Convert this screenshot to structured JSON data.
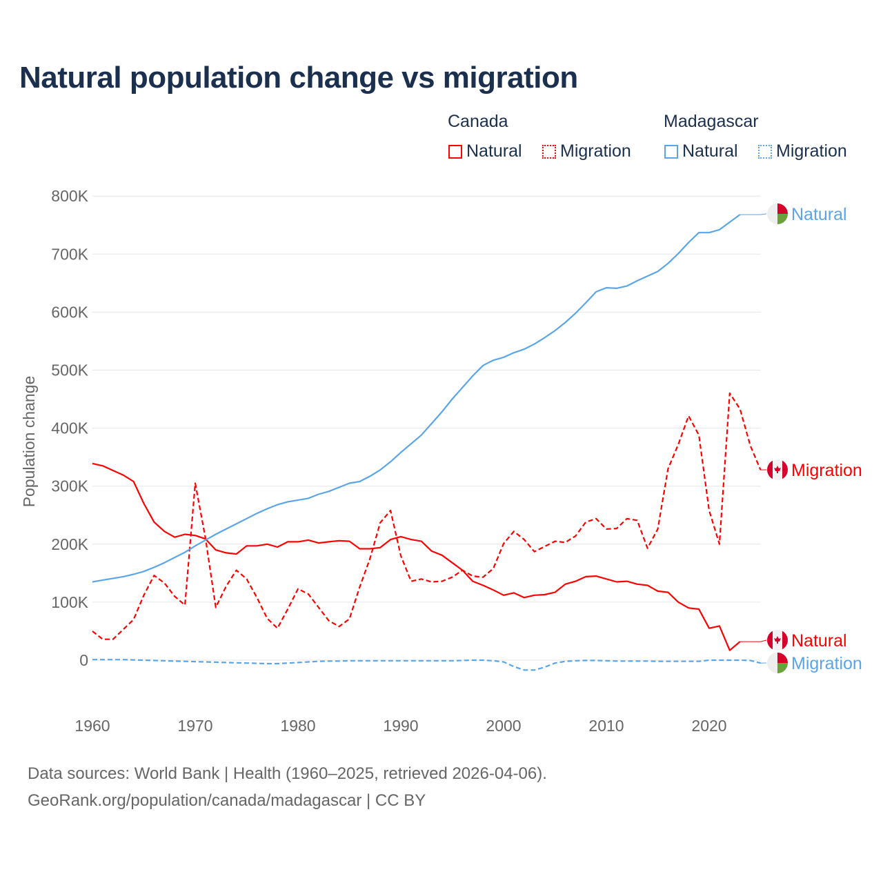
{
  "title": "Natural population change vs migration",
  "legend": {
    "groups": [
      {
        "country": "Canada",
        "items": [
          {
            "label": "Natural",
            "style": "solid",
            "color": "#ff0000"
          },
          {
            "label": "Migration",
            "style": "dotted",
            "color": "#ff0000"
          }
        ]
      },
      {
        "country": "Madagascar",
        "items": [
          {
            "label": "Natural",
            "style": "solid",
            "color": "#5aa5e8"
          },
          {
            "label": "Migration",
            "style": "dotted",
            "color": "#5aa5e8"
          }
        ]
      }
    ]
  },
  "footer": {
    "line1": "Data sources: World Bank | Health (1960–2025, retrieved 2026-04-06).",
    "line2": "GeoRank.org/population/canada/madagascar | CC BY"
  },
  "chart_data": {
    "type": "line",
    "title": "Natural population change vs migration",
    "xlabel": "",
    "ylabel": "Population change",
    "xlim": [
      1960,
      2025
    ],
    "ylim": [
      -80000,
      800000
    ],
    "x_ticks": [
      1960,
      1970,
      1980,
      1990,
      2000,
      2010,
      2020
    ],
    "x_tick_labels": [
      "1960",
      "1970",
      "1980",
      "1990",
      "2000",
      "2010",
      "2020"
    ],
    "y_ticks": [
      0,
      100000,
      200000,
      300000,
      400000,
      500000,
      600000,
      700000,
      800000
    ],
    "y_tick_labels": [
      "0",
      "100K",
      "200K",
      "300K",
      "400K",
      "500K",
      "600K",
      "700K",
      "800K"
    ],
    "grid": true,
    "legend_position": "top-right",
    "series": [
      {
        "name": "Canada Natural",
        "end_label": "Natural",
        "color": "#ff0000",
        "dash": "solid",
        "flag": "canada",
        "start_year": 1960,
        "values": [
          339000,
          335000,
          327000,
          319000,
          308000,
          270000,
          238000,
          222000,
          212000,
          217000,
          215000,
          209000,
          190000,
          185000,
          183000,
          197000,
          197000,
          200000,
          195000,
          204000,
          204000,
          207000,
          202000,
          204000,
          206000,
          205000,
          192000,
          192000,
          194000,
          208000,
          213000,
          208000,
          205000,
          188000,
          181000,
          168000,
          155000,
          136000,
          129000,
          121000,
          112000,
          116000,
          108000,
          112000,
          113000,
          117000,
          131000,
          136000,
          144000,
          145000,
          140000,
          135000,
          136000,
          131000,
          129000,
          119000,
          117000,
          100000,
          90000,
          88000,
          55000,
          59000,
          17000,
          32000
        ]
      },
      {
        "name": "Canada Migration",
        "end_label": "Migration",
        "color": "#ff0000",
        "dash": "dashed",
        "flag": "canada",
        "start_year": 1960,
        "values": [
          50000,
          36000,
          36000,
          53000,
          70000,
          112000,
          146000,
          133000,
          110000,
          95000,
          305000,
          210000,
          91000,
          127000,
          155000,
          140000,
          108000,
          72000,
          55000,
          88000,
          123000,
          114000,
          91000,
          68000,
          58000,
          71000,
          126000,
          175000,
          237000,
          258000,
          180000,
          136000,
          140000,
          135000,
          136000,
          143000,
          155000,
          145000,
          143000,
          158000,
          201000,
          222000,
          208000,
          187000,
          196000,
          205000,
          203000,
          214000,
          238000,
          244000,
          226000,
          227000,
          244000,
          241000,
          193000,
          226000,
          330000,
          372000,
          421000,
          388000,
          258000,
          200000,
          460000,
          433000,
          370000,
          328000
        ]
      },
      {
        "name": "Madagascar Natural",
        "end_label": "Natural",
        "color": "#5aa5e8",
        "dash": "solid",
        "flag": "madagascar",
        "start_year": 1960,
        "values": [
          135000,
          138000,
          141000,
          144000,
          148000,
          153000,
          160000,
          168000,
          177000,
          186000,
          197000,
          207000,
          217000,
          226000,
          235000,
          244000,
          253000,
          261000,
          268000,
          273000,
          276000,
          279000,
          286000,
          291000,
          298000,
          305000,
          308000,
          317000,
          328000,
          342000,
          358000,
          373000,
          388000,
          408000,
          428000,
          450000,
          470000,
          490000,
          508000,
          517000,
          522000,
          530000,
          536000,
          545000,
          556000,
          568000,
          582000,
          598000,
          616000,
          635000,
          642000,
          641000,
          645000,
          654000,
          662000,
          670000,
          684000,
          701000,
          720000,
          737000,
          737000,
          742000,
          755000,
          768000
        ]
      },
      {
        "name": "Madagascar Migration",
        "end_label": "Migration",
        "color": "#5aa5e8",
        "dash": "dashed",
        "flag": "madagascar",
        "start_year": 1960,
        "values": [
          1000,
          1000,
          1000,
          1000,
          500,
          0,
          -500,
          -1000,
          -1500,
          -2000,
          -2500,
          -3000,
          -3500,
          -4000,
          -4500,
          -5000,
          -5500,
          -6000,
          -6000,
          -5000,
          -4000,
          -3000,
          -2000,
          -1500,
          -1500,
          -1000,
          -1000,
          -1000,
          -1000,
          -1000,
          -1000,
          -1000,
          -1000,
          -1000,
          -1000,
          -1000,
          -500,
          0,
          0,
          -1000,
          -3000,
          -11000,
          -17000,
          -17000,
          -12000,
          -5000,
          -2000,
          -1000,
          -500,
          -500,
          -1000,
          -1500,
          -1500,
          -1500,
          -1500,
          -2000,
          -2000,
          -2000,
          -2000,
          -2000,
          0,
          0,
          0,
          0,
          -500,
          -5000
        ]
      }
    ]
  }
}
